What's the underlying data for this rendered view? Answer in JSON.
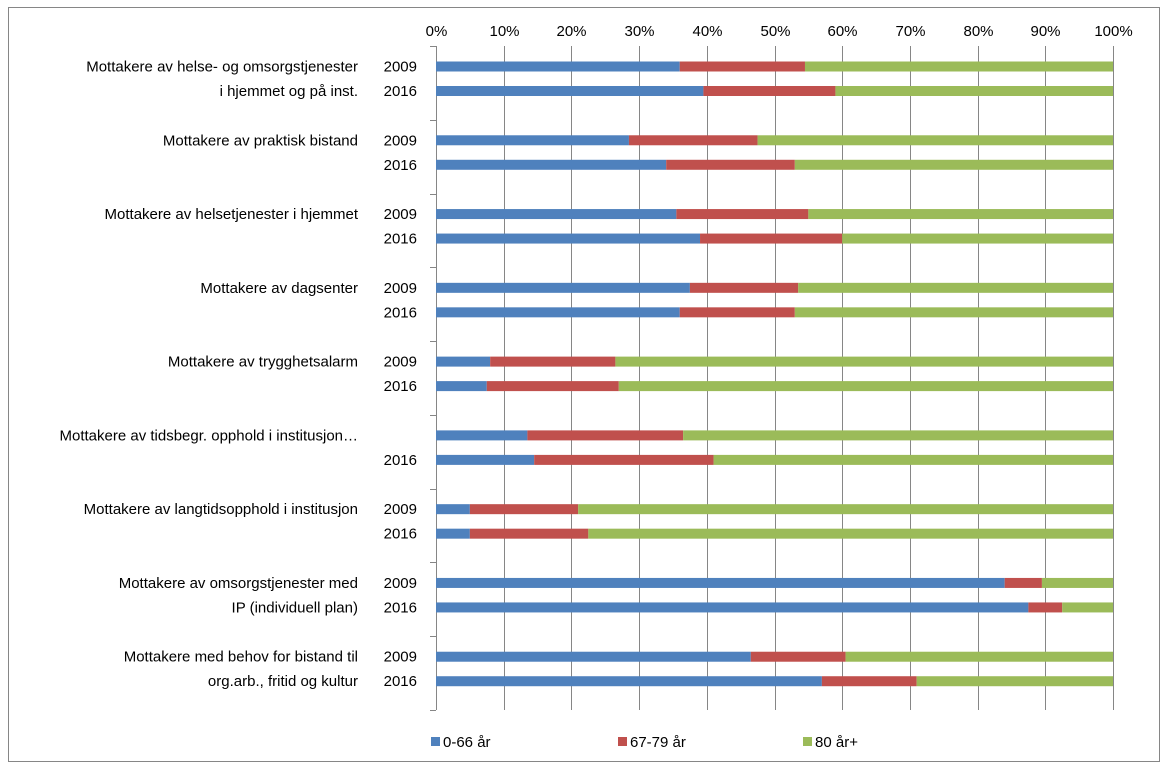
{
  "chart_data": {
    "type": "bar",
    "orientation": "horizontal",
    "stacked": "percent",
    "title": "",
    "xlabel": "",
    "ylabel": "",
    "xlim": [
      0,
      100
    ],
    "x_ticks": [
      "0%",
      "10%",
      "20%",
      "30%",
      "40%",
      "50%",
      "60%",
      "70%",
      "80%",
      "90%",
      "100%"
    ],
    "x_axis_position": "top",
    "grid": true,
    "legend_position": "bottom",
    "colors": {
      "0-66 år": "#4f81bd",
      "67-79 år": "#c0504d",
      "80 år+": "#9bbb59"
    },
    "groups": [
      {
        "label_lines": [
          "Mottakere av helse- og omsorgstjenester",
          "i hjemmet og på inst."
        ],
        "rows": [
          {
            "year": "2009",
            "values": [
              36,
              18.5,
              45.5
            ]
          },
          {
            "year": "2016",
            "values": [
              39.5,
              19.5,
              41
            ]
          }
        ]
      },
      {
        "label_lines": [
          "Mottakere av praktisk bistand"
        ],
        "rows": [
          {
            "year": "2009",
            "values": [
              28.5,
              19,
              52.5
            ]
          },
          {
            "year": "2016",
            "values": [
              34,
              19,
              47
            ]
          }
        ]
      },
      {
        "label_lines": [
          "Mottakere av helsetjenester i hjemmet"
        ],
        "rows": [
          {
            "year": "2009",
            "values": [
              35.5,
              19.5,
              45
            ]
          },
          {
            "year": "2016",
            "values": [
              39,
              21,
              40
            ]
          }
        ]
      },
      {
        "label_lines": [
          "Mottakere av dagsenter"
        ],
        "rows": [
          {
            "year": "2009",
            "values": [
              37.5,
              16,
              46.5
            ]
          },
          {
            "year": "2016",
            "values": [
              36,
              17,
              47
            ]
          }
        ]
      },
      {
        "label_lines": [
          "Mottakere av trygghetsalarm"
        ],
        "rows": [
          {
            "year": "2009",
            "values": [
              8,
              18.5,
              73.5
            ]
          },
          {
            "year": "2016",
            "values": [
              7.5,
              19.5,
              73
            ]
          }
        ]
      },
      {
        "label_lines": [
          "Mottakere av tidsbegr. opphold i institusjon…"
        ],
        "rows": [
          {
            "year": "",
            "values": [
              13.5,
              23,
              63.5
            ]
          },
          {
            "year": "2016",
            "values": [
              14.5,
              26.5,
              59
            ]
          }
        ]
      },
      {
        "label_lines": [
          "Mottakere av langtidsopphold i institusjon"
        ],
        "rows": [
          {
            "year": "2009",
            "values": [
              5,
              16,
              79
            ]
          },
          {
            "year": "2016",
            "values": [
              5,
              17.5,
              77.5
            ]
          }
        ]
      },
      {
        "label_lines": [
          "Mottakere av omsorgstjenester med",
          "IP (individuell plan)"
        ],
        "rows": [
          {
            "year": "2009",
            "values": [
              84,
              5.5,
              10.5
            ]
          },
          {
            "year": "2016",
            "values": [
              87.5,
              5,
              7.5
            ]
          }
        ]
      },
      {
        "label_lines": [
          "Mottakere med behov for bistand til",
          "org.arb., fritid og kultur"
        ],
        "rows": [
          {
            "year": "2009",
            "values": [
              46.5,
              14,
              39.5
            ]
          },
          {
            "year": "2016",
            "values": [
              57,
              14,
              29
            ]
          }
        ]
      }
    ],
    "series": [
      {
        "name": "0-66 år"
      },
      {
        "name": "67-79 år"
      },
      {
        "name": "80 år+"
      }
    ]
  }
}
